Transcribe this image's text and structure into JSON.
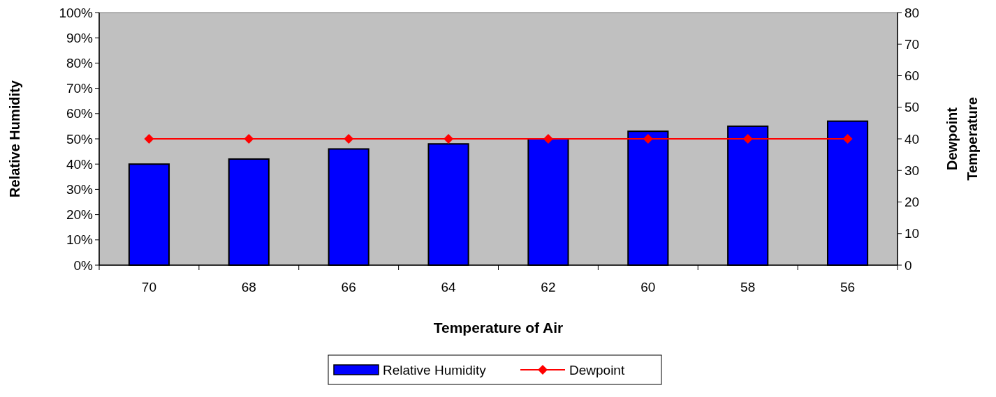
{
  "chart_data": {
    "type": "bar",
    "xlabel": "Temperature of Air",
    "ylabel": "Relative Humidity",
    "y2label": "Dewpoint Temperature",
    "categories": [
      "70",
      "68",
      "66",
      "64",
      "62",
      "60",
      "58",
      "56"
    ],
    "series": [
      {
        "name": "Relative Humidity",
        "color": "#0000ff",
        "values": [
          40,
          42,
          46,
          48,
          50,
          53,
          55,
          57
        ]
      },
      {
        "name": "Dewpoint",
        "type": "line",
        "axis": "y2",
        "color": "#ff0000",
        "marker": "diamond",
        "values": [
          40,
          40,
          40,
          40,
          40,
          40,
          40,
          40
        ]
      }
    ],
    "ylim": [
      0,
      100
    ],
    "yticks": [
      {
        "value": 0,
        "label": "0%"
      },
      {
        "value": 10,
        "label": "10%"
      },
      {
        "value": 20,
        "label": "20%"
      },
      {
        "value": 30,
        "label": "30%"
      },
      {
        "value": 40,
        "label": "40%"
      },
      {
        "value": 50,
        "label": "50%"
      },
      {
        "value": 60,
        "label": "60%"
      },
      {
        "value": 70,
        "label": "70%"
      },
      {
        "value": 80,
        "label": "80%"
      },
      {
        "value": 90,
        "label": "90%"
      },
      {
        "value": 100,
        "label": "100%"
      }
    ],
    "y2lim": [
      0,
      80
    ],
    "y2ticks": [
      0,
      10,
      20,
      30,
      40,
      50,
      60,
      70,
      80
    ],
    "grid": false,
    "legend": "bottom"
  }
}
